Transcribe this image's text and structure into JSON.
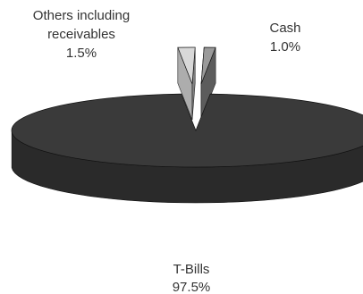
{
  "chart_data": {
    "type": "pie",
    "style": "3d-exploded",
    "slices": [
      {
        "label": "T-Bills",
        "value": 97.5,
        "value_label": "97.5%",
        "color": "#3a3a3a"
      },
      {
        "label": "Others including receivables",
        "label_lines": [
          "Others including",
          "receivables"
        ],
        "value": 1.5,
        "value_label": "1.5%",
        "color": "#d8d8d8"
      },
      {
        "label": "Cash",
        "value": 1.0,
        "value_label": "1.0%",
        "color": "#9a9a9a"
      }
    ],
    "title": "",
    "legend": "none"
  }
}
